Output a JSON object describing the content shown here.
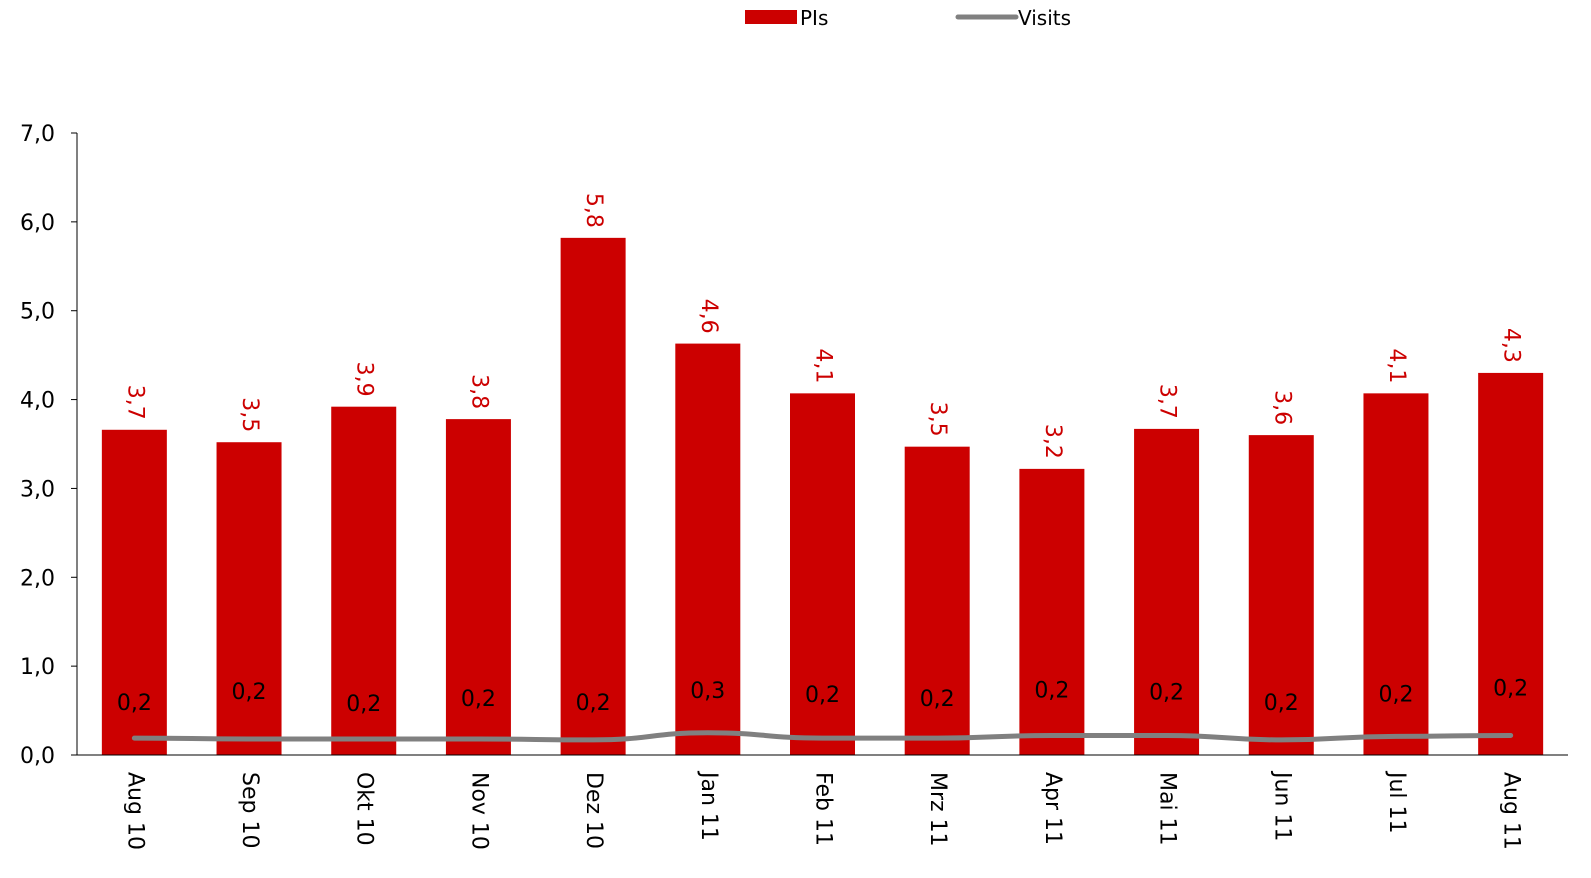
{
  "chart_data": {
    "type": "bar",
    "categories": [
      "Aug 10",
      "Sep 10",
      "Okt 10",
      "Nov 10",
      "Dez 10",
      "Jan 11",
      "Feb 11",
      "Mrz 11",
      "Apr 11",
      "Mai 11",
      "Jun 11",
      "Jul 11",
      "Aug 11"
    ],
    "series": [
      {
        "name": "PIs",
        "type": "bar",
        "color": "#CC0000",
        "values": [
          3.66,
          3.52,
          3.92,
          3.78,
          5.82,
          4.63,
          4.07,
          3.47,
          3.22,
          3.67,
          3.6,
          4.07,
          4.3
        ],
        "labels": [
          "3,7",
          "3,5",
          "3,9",
          "3,8",
          "5,8",
          "4,6",
          "4,1",
          "3,5",
          "3,2",
          "3,7",
          "3,6",
          "4,1",
          "4,3"
        ]
      },
      {
        "name": "Visits",
        "type": "line",
        "color": "#808080",
        "values": [
          0.19,
          0.18,
          0.18,
          0.18,
          0.17,
          0.25,
          0.19,
          0.19,
          0.22,
          0.22,
          0.17,
          0.21,
          0.22
        ],
        "labels": [
          "0,2",
          "0,2",
          "0,2",
          "0,2",
          "0,2",
          "0,3",
          "0,2",
          "0,2",
          "0,2",
          "0,2",
          "0,2",
          "0,2",
          "0,2"
        ]
      }
    ],
    "ylim": [
      0,
      7
    ],
    "yticks": [
      "0,0",
      "1,0",
      "2,0",
      "3,0",
      "4,0",
      "5,0",
      "6,0",
      "7,0"
    ],
    "legend_position": "top-center",
    "grid": false
  }
}
